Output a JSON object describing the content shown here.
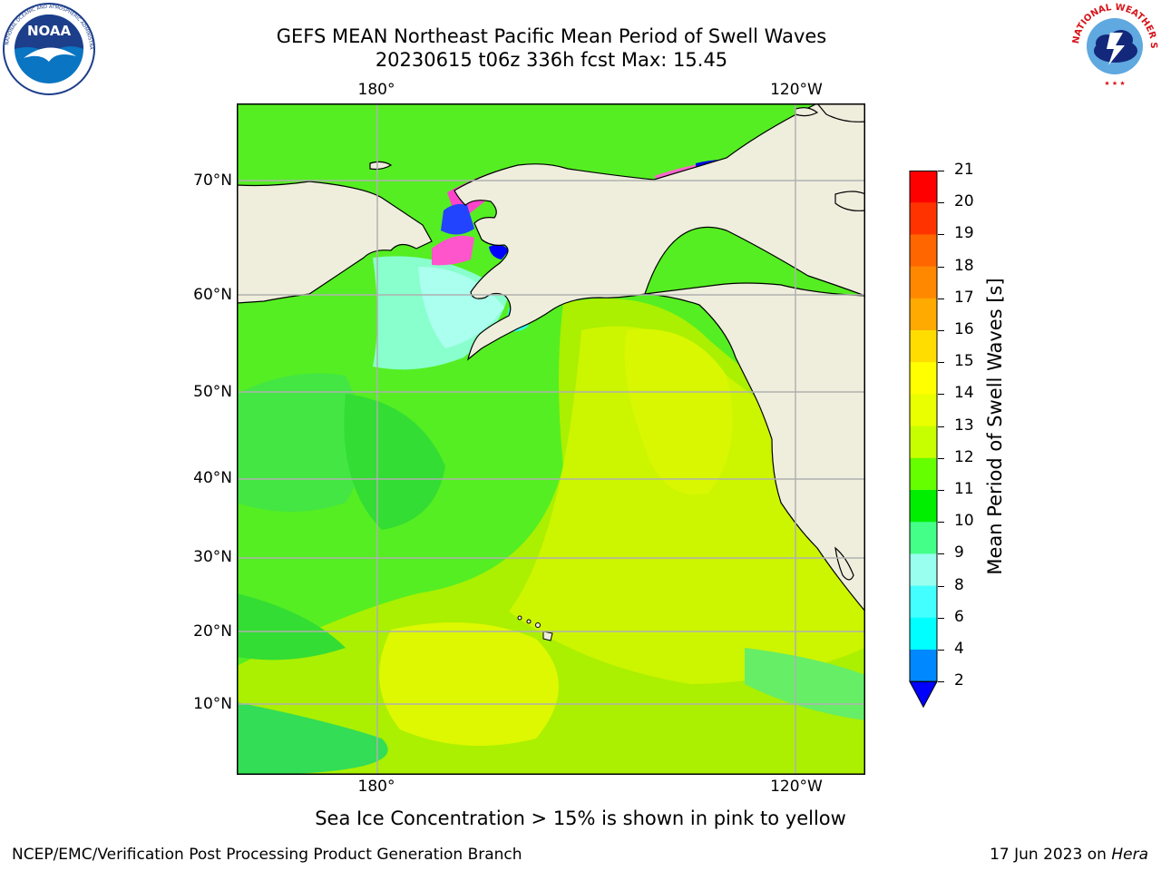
{
  "title_line1": "GEFS MEAN Northeast Pacific Mean Period of Swell Waves",
  "title_line2": "20230615 t06z 336h fcst   Max: 15.45",
  "lon_labels": [
    "180°",
    "120°W"
  ],
  "lat_labels": [
    "70°N",
    "60°N",
    "50°N",
    "40°N",
    "30°N",
    "20°N",
    "10°N"
  ],
  "colorbar": {
    "label": "Mean Period of Swell Waves [s]",
    "ticks": [
      "21",
      "20",
      "19",
      "18",
      "17",
      "16",
      "15",
      "14",
      "13",
      "12",
      "11",
      "10",
      "9",
      "8",
      "6",
      "4",
      "2"
    ],
    "colors": [
      "#ff0000",
      "#ff3300",
      "#ff6600",
      "#ff8800",
      "#ffaa00",
      "#ffdd00",
      "#ffff00",
      "#eaff00",
      "#c8ff00",
      "#66ff00",
      "#00ee00",
      "#44ff88",
      "#99ffee",
      "#44ffff",
      "#00ffff",
      "#0088ff",
      "#0000ff"
    ]
  },
  "sea_ice_note": "Sea Ice Concentration > 15% is shown in pink to yellow",
  "footer_left": "NCEP/EMC/Verification Post Processing Product Generation Branch",
  "footer_date": "17 Jun 2023 on ",
  "footer_host": "Hera",
  "logos": {
    "noaa_text": "NOAA",
    "noaa_ring": "NATIONAL OCEANIC AND ATMOSPHERIC ADMINISTRATION",
    "nws_ring": "NATIONAL WEATHER SERVICE"
  },
  "colors": {
    "land": "#efeedd",
    "coast": "#000000",
    "grid": "#b0b0b0"
  }
}
